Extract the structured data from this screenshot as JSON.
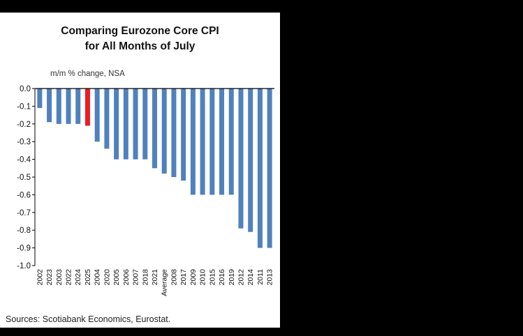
{
  "window": {
    "background_color": "#000000",
    "panel_color": "#ffffff"
  },
  "chart": {
    "title_line1": "Comparing Eurozone Core CPI",
    "title_line2": "for All Months of July",
    "subtitle": "m/m % change, NSA"
  },
  "footer": {
    "sources": "Sources: Scotiabank Economics, Eurostat."
  },
  "chart_data": {
    "type": "bar",
    "title": "Comparing Eurozone Core CPI for All Months of July",
    "subtitle": "m/m % change, NSA",
    "categories": [
      "2002",
      "2023",
      "2003",
      "2022",
      "2024",
      "2025",
      "2004",
      "2020",
      "2005",
      "2006",
      "2007",
      "2018",
      "2021",
      "Average",
      "2008",
      "2017",
      "2009",
      "2010",
      "2015",
      "2016",
      "2019",
      "2012",
      "2014",
      "2011",
      "2013"
    ],
    "values": [
      -0.11,
      -0.19,
      -0.2,
      -0.2,
      -0.2,
      -0.21,
      -0.3,
      -0.34,
      -0.4,
      -0.4,
      -0.4,
      -0.4,
      -0.45,
      -0.48,
      -0.5,
      -0.52,
      -0.6,
      -0.6,
      -0.6,
      -0.6,
      -0.6,
      -0.79,
      -0.81,
      -0.9,
      -0.9
    ],
    "bar_color": "#4f81bd",
    "highlight_index": 5,
    "highlight_color": "#ed1c24",
    "highlight_category": "2025",
    "ylabel": "m/m % change, NSA",
    "xlabel": "",
    "ylim": [
      -1.0,
      0.0
    ],
    "ytick_values": [
      0.0,
      -0.1,
      -0.2,
      -0.3,
      -0.4,
      -0.5,
      -0.6,
      -0.7,
      -0.8,
      -0.9,
      -1.0
    ],
    "ytick_labels": [
      "0.0",
      "-0.1",
      "-0.2",
      "-0.3",
      "-0.4",
      "-0.5",
      "-0.6",
      "-0.7",
      "-0.8",
      "-0.9",
      "-1.0"
    ],
    "grid": false,
    "legend": "none",
    "axis_color": "#000000"
  }
}
